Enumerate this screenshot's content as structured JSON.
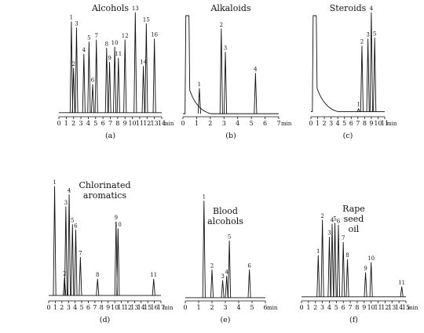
{
  "chart_data": [
    {
      "type": "line",
      "panel": "(a)",
      "title": [
        "Alcohols"
      ],
      "xlabel": "min",
      "x_ticks": [
        0,
        1,
        2,
        3,
        4,
        5,
        6,
        7,
        8,
        9,
        10,
        11,
        12,
        13,
        14
      ],
      "xlim": [
        0,
        14
      ],
      "ylim": [
        0,
        100
      ],
      "baseline": 4,
      "peaks": [
        {
          "label": "1",
          "x": 1.7,
          "y": 94
        },
        {
          "label": "2",
          "x": 2.0,
          "y": 48
        },
        {
          "label": "3",
          "x": 2.4,
          "y": 88
        },
        {
          "label": "4",
          "x": 3.4,
          "y": 62
        },
        {
          "label": "5",
          "x": 4.1,
          "y": 74
        },
        {
          "label": "6",
          "x": 4.6,
          "y": 32
        },
        {
          "label": "7",
          "x": 5.1,
          "y": 76
        },
        {
          "label": "8",
          "x": 6.5,
          "y": 68
        },
        {
          "label": "9",
          "x": 6.9,
          "y": 54
        },
        {
          "label": "10",
          "x": 7.6,
          "y": 69
        },
        {
          "label": "11",
          "x": 8.1,
          "y": 58
        },
        {
          "label": "12",
          "x": 9.0,
          "y": 76
        },
        {
          "label": "13",
          "x": 10.4,
          "y": 103
        },
        {
          "label": "14",
          "x": 11.5,
          "y": 50
        },
        {
          "label": "15",
          "x": 11.9,
          "y": 92
        },
        {
          "label": "16",
          "x": 13.0,
          "y": 77
        }
      ]
    },
    {
      "type": "line",
      "panel": "(b)",
      "title": [
        "Alkaloids"
      ],
      "xlabel": "min",
      "x_ticks": [
        0,
        1,
        2,
        3,
        4,
        5,
        6,
        7
      ],
      "xlim": [
        0,
        7
      ],
      "ylim": [
        0,
        100
      ],
      "baseline": 3,
      "solvent_front": true,
      "peaks": [
        {
          "label": "1",
          "x": 1.2,
          "y": 28
        },
        {
          "label": "2",
          "x": 2.8,
          "y": 87
        },
        {
          "label": "3",
          "x": 3.1,
          "y": 64
        },
        {
          "label": "4",
          "x": 5.3,
          "y": 43
        }
      ]
    },
    {
      "type": "line",
      "panel": "(c)",
      "title": [
        "Steroids"
      ],
      "xlabel": "min",
      "x_ticks": [
        0,
        1,
        2,
        3,
        4,
        5,
        6,
        7,
        8,
        9,
        10,
        11
      ],
      "xlim": [
        0,
        11
      ],
      "ylim": [
        0,
        100
      ],
      "baseline": 5,
      "solvent_front": true,
      "peaks": [
        {
          "label": "1",
          "x": 7.1,
          "y": 8
        },
        {
          "label": "2",
          "x": 7.6,
          "y": 70
        },
        {
          "label": "3",
          "x": 8.5,
          "y": 77
        },
        {
          "label": "4",
          "x": 9.0,
          "y": 103
        },
        {
          "label": "5",
          "x": 9.5,
          "y": 78
        }
      ]
    },
    {
      "type": "line",
      "panel": "(d)",
      "title": [
        "Chlorinated",
        "aromatics"
      ],
      "xlabel": "min",
      "x_ticks": [
        0,
        1,
        2,
        3,
        4,
        5,
        6,
        7,
        8,
        9,
        10,
        11,
        12,
        13,
        14,
        15,
        16,
        17
      ],
      "xlim": [
        0,
        17
      ],
      "ylim": [
        0,
        100
      ],
      "baseline": 4,
      "peaks": [
        {
          "label": "1",
          "x": 0.9,
          "y": 84
        },
        {
          "label": "2",
          "x": 2.4,
          "y": 17
        },
        {
          "label": "3",
          "x": 2.6,
          "y": 69
        },
        {
          "label": "4",
          "x": 3.1,
          "y": 78
        },
        {
          "label": "5",
          "x": 3.6,
          "y": 56
        },
        {
          "label": "6",
          "x": 4.1,
          "y": 52
        },
        {
          "label": "7",
          "x": 4.8,
          "y": 32
        },
        {
          "label": "8",
          "x": 7.4,
          "y": 16
        },
        {
          "label": "9",
          "x": 10.2,
          "y": 58
        },
        {
          "label": "10",
          "x": 10.5,
          "y": 53
        },
        {
          "label": "11",
          "x": 15.9,
          "y": 16
        }
      ]
    },
    {
      "type": "line",
      "panel": "(e)",
      "title": [
        "Blood",
        "alcohols"
      ],
      "xlabel": "min",
      "x_ticks": [
        0,
        1,
        2,
        3,
        4,
        5,
        6
      ],
      "xlim": [
        0,
        6
      ],
      "ylim": [
        0,
        100
      ],
      "baseline": 3,
      "peaks": [
        {
          "label": "1",
          "x": 1.4,
          "y": 93
        },
        {
          "label": "2",
          "x": 2.0,
          "y": 29
        },
        {
          "label": "3",
          "x": 2.8,
          "y": 19
        },
        {
          "label": "4",
          "x": 3.1,
          "y": 23
        },
        {
          "label": "5",
          "x": 3.3,
          "y": 56
        },
        {
          "label": "6",
          "x": 4.8,
          "y": 29
        }
      ]
    },
    {
      "type": "line",
      "panel": "(f)",
      "title": [
        "Rape",
        "seed",
        "oil"
      ],
      "xlabel": "min",
      "x_ticks": [
        0,
        1,
        2,
        3,
        4,
        5,
        6,
        7,
        8,
        9,
        10,
        11,
        12,
        13,
        14,
        15
      ],
      "xlim": [
        0,
        15
      ],
      "ylim": [
        0,
        100
      ],
      "baseline": 4,
      "peaks": [
        {
          "label": "1",
          "x": 2.4,
          "y": 45
        },
        {
          "label": "2",
          "x": 3.0,
          "y": 80
        },
        {
          "label": "3",
          "x": 4.0,
          "y": 63
        },
        {
          "label": "4",
          "x": 4.4,
          "y": 76
        },
        {
          "label": "5",
          "x": 4.8,
          "y": 77
        },
        {
          "label": "6",
          "x": 5.3,
          "y": 75
        },
        {
          "label": "7",
          "x": 6.0,
          "y": 58
        },
        {
          "label": "8",
          "x": 6.6,
          "y": 41
        },
        {
          "label": "9",
          "x": 9.2,
          "y": 28
        },
        {
          "label": "10",
          "x": 10.0,
          "y": 38
        },
        {
          "label": "11",
          "x": 14.4,
          "y": 14
        }
      ]
    }
  ]
}
